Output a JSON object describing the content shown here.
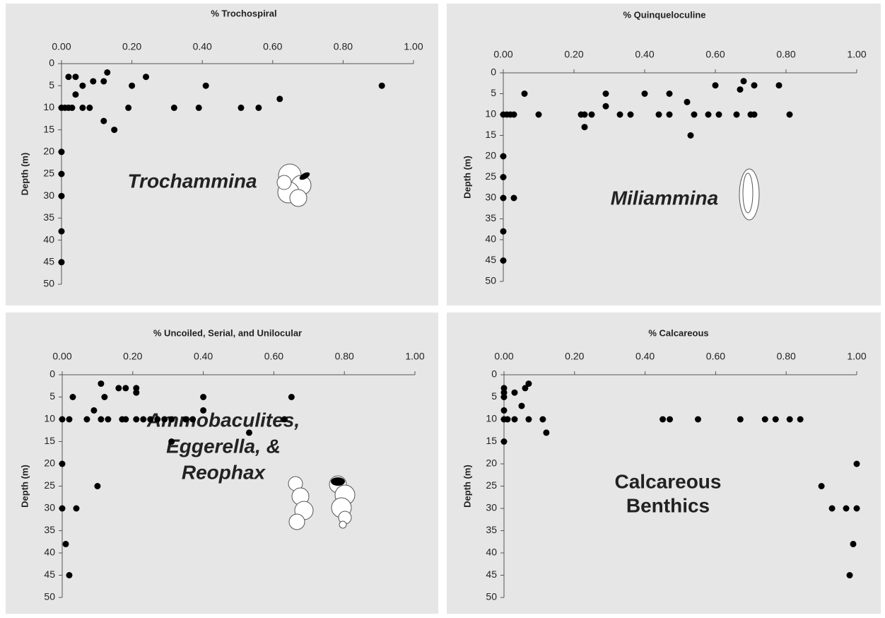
{
  "chart_data": [
    {
      "type": "scatter",
      "title": "% Trochospiral",
      "y_label": "Depth (m)",
      "annotation": [
        "Trochammina"
      ],
      "annotation_italic": true,
      "color": "#000000",
      "xlim": [
        0,
        1
      ],
      "xticks": [
        {
          "value": 0,
          "label": "0.00"
        },
        {
          "value": 0.2,
          "label": "0.20"
        },
        {
          "value": 0.4,
          "label": "0.40"
        },
        {
          "value": 0.6,
          "label": "0.60"
        },
        {
          "value": 0.8,
          "label": "0.80"
        },
        {
          "value": 1,
          "label": "1.00"
        }
      ],
      "ylim": [
        50,
        0
      ],
      "yticks": [
        0,
        5,
        10,
        15,
        20,
        25,
        30,
        35,
        40,
        45,
        50
      ],
      "x": [
        0,
        0.01,
        0.02,
        0.03,
        0.02,
        0.04,
        0.04,
        0.06,
        0.06,
        0.08,
        0.09,
        0.12,
        0.13,
        0.12,
        0.15,
        0.19,
        0.2,
        0.24,
        0.32,
        0.39,
        0.41,
        0.51,
        0.56,
        0.62,
        0.91,
        0,
        0,
        0,
        0,
        0
      ],
      "values": [
        10,
        10,
        10,
        10,
        3,
        3,
        7,
        5,
        10,
        10,
        4,
        4,
        2,
        13,
        15,
        10,
        5,
        3,
        10,
        10,
        5,
        10,
        10,
        8,
        5,
        20,
        25,
        30,
        38,
        45
      ]
    },
    {
      "type": "scatter",
      "title": "% Quinqueloculine",
      "y_label": "Depth (m)",
      "annotation": [
        "Miliammina"
      ],
      "annotation_italic": true,
      "color": "#000000",
      "xlim": [
        0,
        1
      ],
      "xticks": [
        {
          "value": 0,
          "label": "0.00"
        },
        {
          "value": 0.2,
          "label": "0.20"
        },
        {
          "value": 0.4,
          "label": "0.40"
        },
        {
          "value": 0.6,
          "label": "0.60"
        },
        {
          "value": 0.8,
          "label": "0.80"
        },
        {
          "value": 1,
          "label": "1.00"
        }
      ],
      "ylim": [
        50,
        0
      ],
      "yticks": [
        0,
        5,
        10,
        15,
        20,
        25,
        30,
        35,
        40,
        45,
        50
      ],
      "x": [
        0,
        0.01,
        0.02,
        0.03,
        0.06,
        0.1,
        0.22,
        0.23,
        0.23,
        0.25,
        0.29,
        0.29,
        0.33,
        0.36,
        0.4,
        0.44,
        0.47,
        0.47,
        0.52,
        0.53,
        0.54,
        0.58,
        0.6,
        0.61,
        0.66,
        0.67,
        0.68,
        0.7,
        0.71,
        0.71,
        0.78,
        0.81,
        0,
        0,
        0,
        0.03,
        0,
        0
      ],
      "values": [
        10,
        10,
        10,
        10,
        5,
        10,
        10,
        10,
        13,
        10,
        5,
        8,
        10,
        10,
        5,
        10,
        10,
        5,
        7,
        15,
        10,
        10,
        3,
        10,
        10,
        4,
        2,
        10,
        3,
        10,
        3,
        10,
        20,
        25,
        30,
        30,
        38,
        45
      ]
    },
    {
      "type": "scatter",
      "title": "% Uncoiled, Serial, and Unilocular",
      "y_label": "Depth (m)",
      "annotation": [
        "Ammobaculites,",
        "Eggerella, &",
        "Reophax"
      ],
      "annotation_italic": true,
      "color": "#000000",
      "xlim": [
        0,
        1
      ],
      "xticks": [
        {
          "value": 0,
          "label": "0.00"
        },
        {
          "value": 0.2,
          "label": "0.20"
        },
        {
          "value": 0.4,
          "label": "0.40"
        },
        {
          "value": 0.6,
          "label": "0.60"
        },
        {
          "value": 0.8,
          "label": "0.80"
        },
        {
          "value": 1,
          "label": "1.00"
        }
      ],
      "ylim": [
        50,
        0
      ],
      "yticks": [
        0,
        5,
        10,
        15,
        20,
        25,
        30,
        35,
        40,
        45,
        50
      ],
      "x": [
        0,
        0.02,
        0.03,
        0.07,
        0.09,
        0.11,
        0.11,
        0.12,
        0.13,
        0.16,
        0.17,
        0.18,
        0.18,
        0.21,
        0.21,
        0.21,
        0.23,
        0.25,
        0.27,
        0.29,
        0.31,
        0.31,
        0.35,
        0.37,
        0.4,
        0.4,
        0.53,
        0.63,
        0.65,
        0,
        0.1,
        0,
        0.04,
        0.01,
        0.02
      ],
      "values": [
        10,
        10,
        5,
        10,
        8,
        2,
        10,
        5,
        10,
        3,
        10,
        3,
        10,
        3,
        4,
        10,
        10,
        10,
        10,
        10,
        10,
        15,
        10,
        10,
        8,
        5,
        13,
        10,
        5,
        20,
        25,
        30,
        30,
        38,
        45
      ]
    },
    {
      "type": "scatter",
      "title": "% Calcareous",
      "y_label": "Depth (m)",
      "annotation": [
        "Calcareous",
        "Benthics"
      ],
      "annotation_italic": false,
      "color": "#000000",
      "xlim": [
        0,
        1
      ],
      "xticks": [
        {
          "value": 0,
          "label": "0.00"
        },
        {
          "value": 0.2,
          "label": "0.20"
        },
        {
          "value": 0.4,
          "label": "0.40"
        },
        {
          "value": 0.6,
          "label": "0.60"
        },
        {
          "value": 0.8,
          "label": "0.80"
        },
        {
          "value": 1,
          "label": "1.00"
        }
      ],
      "ylim": [
        50,
        0
      ],
      "yticks": [
        0,
        5,
        10,
        15,
        20,
        25,
        30,
        35,
        40,
        45,
        50
      ],
      "x": [
        0,
        0,
        0,
        0,
        0,
        0,
        0.01,
        0.03,
        0.03,
        0.05,
        0.06,
        0.07,
        0.07,
        0.11,
        0.12,
        0.45,
        0.47,
        0.55,
        0.67,
        0.74,
        0.77,
        0.81,
        0.84,
        0.9,
        0.93,
        0.97,
        0.98,
        0.99,
        1,
        1
      ],
      "values": [
        3,
        4,
        5,
        8,
        10,
        15,
        10,
        4,
        10,
        7,
        3,
        2,
        10,
        10,
        13,
        10,
        10,
        10,
        10,
        10,
        10,
        10,
        10,
        25,
        30,
        30,
        45,
        38,
        20,
        30
      ]
    }
  ]
}
